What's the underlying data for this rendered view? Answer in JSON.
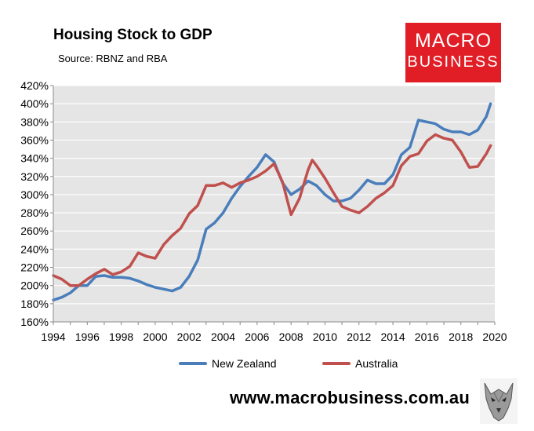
{
  "header": {
    "title": "Housing Stock to GDP",
    "subtitle": "Source: RBNZ and RBA"
  },
  "logo": {
    "line1": "MACRO",
    "line2": "BUSINESS",
    "bg_color": "#e11d26"
  },
  "footer": {
    "website": "www.macrobusiness.com.au",
    "emblem": "wolf-head-icon"
  },
  "chart_data": {
    "type": "line",
    "title": "Housing Stock to GDP",
    "subtitle": "Source: RBNZ and RBA",
    "xlim": [
      1994,
      2020
    ],
    "ylim": [
      160,
      420
    ],
    "x_ticks": [
      1994,
      1996,
      1998,
      2000,
      2002,
      2004,
      2006,
      2008,
      2010,
      2012,
      2014,
      2016,
      2018,
      2020
    ],
    "y_ticks": [
      "160%",
      "180%",
      "200%",
      "220%",
      "240%",
      "260%",
      "280%",
      "300%",
      "320%",
      "340%",
      "360%",
      "380%",
      "400%",
      "420%"
    ],
    "y_tick_values": [
      160,
      180,
      200,
      220,
      240,
      260,
      280,
      300,
      320,
      340,
      360,
      380,
      400,
      420
    ],
    "grid": "horizontal",
    "plot_background": "#e5e5e5",
    "legend_position": "bottom",
    "series": [
      {
        "name": "New Zealand",
        "color": "#4a7ebb",
        "x": [
          1994,
          1994.5,
          1995,
          1995.5,
          1996,
          1996.5,
          1997,
          1997.5,
          1998,
          1998.5,
          1999,
          1999.5,
          2000,
          2000.5,
          2001,
          2001.5,
          2002,
          2002.5,
          2003,
          2003.5,
          2004,
          2004.5,
          2005,
          2005.5,
          2006,
          2006.5,
          2007,
          2007.5,
          2008,
          2008.5,
          2009,
          2009.5,
          2010,
          2010.5,
          2011,
          2011.5,
          2012,
          2012.5,
          2013,
          2013.5,
          2014,
          2014.5,
          2015,
          2015.5,
          2016,
          2016.5,
          2017,
          2017.5,
          2018,
          2018.5,
          2019,
          2019.5,
          2019.75
        ],
        "values": [
          184,
          187,
          192,
          200,
          200,
          210,
          211,
          209,
          209,
          208,
          205,
          201,
          198,
          196,
          194,
          198,
          210,
          228,
          262,
          269,
          280,
          296,
          309,
          320,
          330,
          344,
          336,
          313,
          300,
          306,
          315,
          310,
          300,
          293,
          293,
          296,
          305,
          316,
          312,
          312,
          322,
          344,
          352,
          382,
          380,
          378,
          372,
          369,
          369,
          366,
          371,
          386,
          400
        ]
      },
      {
        "name": "Australia",
        "color": "#c0504d",
        "x": [
          1994,
          1994.5,
          1995,
          1995.5,
          1996,
          1996.5,
          1997,
          1997.5,
          1998,
          1998.5,
          1999,
          1999.5,
          2000,
          2000.5,
          2001,
          2001.5,
          2002,
          2002.5,
          2003,
          2003.5,
          2004,
          2004.5,
          2005,
          2005.5,
          2006,
          2006.5,
          2007,
          2007.5,
          2008,
          2008.5,
          2009,
          2009.25,
          2009.5,
          2010,
          2010.5,
          2011,
          2011.5,
          2012,
          2012.5,
          2013,
          2013.5,
          2014,
          2014.5,
          2015,
          2015.5,
          2016,
          2016.5,
          2017,
          2017.5,
          2018,
          2018.5,
          2019,
          2019.5,
          2019.75
        ],
        "values": [
          211,
          207,
          200,
          200,
          207,
          213,
          218,
          212,
          215,
          221,
          236,
          232,
          230,
          245,
          255,
          263,
          279,
          288,
          310,
          310,
          313,
          308,
          313,
          316,
          320,
          326,
          334,
          314,
          278,
          296,
          327,
          338,
          332,
          318,
          302,
          287,
          283,
          280,
          287,
          296,
          302,
          310,
          332,
          342,
          345,
          359,
          366,
          362,
          360,
          347,
          330,
          331,
          345,
          354
        ]
      }
    ]
  }
}
